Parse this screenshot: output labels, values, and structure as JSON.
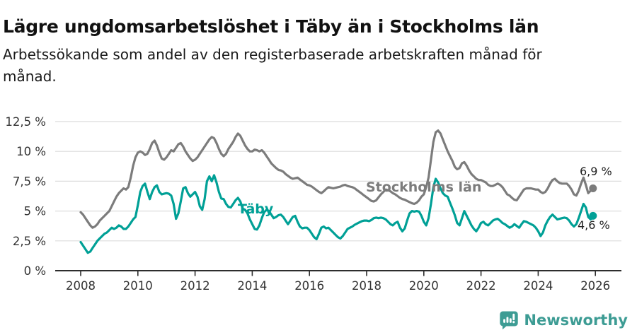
{
  "header": {
    "title": "Lägre ungdomsarbetslöshet i Täby än i Stockholms län",
    "subtitle": "Arbetssökande som andel av den registerbaserade arbetskraften månad för månad.",
    "subtitle_lines": [
      "Arbetssökande som andel av den registerbaserade arbetskraften månad för",
      "månad."
    ]
  },
  "footer": {
    "brand": "Newsworthy",
    "icon": "newsworthy-bar-chart-speech-bubble-icon",
    "brand_color": "#3d9c94"
  },
  "chart_data": {
    "type": "line",
    "title": "Lägre ungdomsarbetslöshet i Täby än i Stockholms län",
    "subtitle": "Arbetssökande som andel av den registerbaserade arbetskraften månad för månad.",
    "unit": "%",
    "x_start": "2008-01",
    "x_end": "2025-12",
    "x_interval": "monthly",
    "xlim": [
      2008,
      2026
    ],
    "ylim": [
      0,
      12.5
    ],
    "grid": "horizontal-only",
    "y_ticks": [
      {
        "value": 0,
        "label": "0 %"
      },
      {
        "value": 2.5,
        "label": "2,5 %"
      },
      {
        "value": 5,
        "label": "5 %"
      },
      {
        "value": 7.5,
        "label": "7,5 %"
      },
      {
        "value": 10,
        "label": "10 %"
      },
      {
        "value": 12.5,
        "label": "12,5 %"
      }
    ],
    "x_ticks": [
      {
        "year": 2008,
        "label": "2008"
      },
      {
        "year": 2010,
        "label": "2010"
      },
      {
        "year": 2012,
        "label": "2012"
      },
      {
        "year": 2014,
        "label": "2014"
      },
      {
        "year": 2016,
        "label": "2016"
      },
      {
        "year": 2018,
        "label": "2018"
      },
      {
        "year": 2020,
        "label": "2020"
      },
      {
        "year": 2022,
        "label": "2022"
      },
      {
        "year": 2024,
        "label": "2024"
      },
      {
        "year": 2026,
        "label": "2026"
      }
    ],
    "legend_position": "inline-labels-on-lines",
    "series": [
      {
        "name": "Stockholms län",
        "color": "#7c7c7c",
        "end_label": "6,9 %",
        "last_value": 6.9,
        "values": [
          4.9,
          4.7,
          4.4,
          4.1,
          3.8,
          3.6,
          3.7,
          3.9,
          4.2,
          4.4,
          4.6,
          4.8,
          5.0,
          5.4,
          5.8,
          6.2,
          6.5,
          6.7,
          6.9,
          6.8,
          7.0,
          7.8,
          8.8,
          9.5,
          9.9,
          10.0,
          9.9,
          9.7,
          9.8,
          10.2,
          10.7,
          10.9,
          10.5,
          9.9,
          9.4,
          9.3,
          9.5,
          9.8,
          10.1,
          10.0,
          10.3,
          10.6,
          10.7,
          10.4,
          10.0,
          9.7,
          9.4,
          9.2,
          9.3,
          9.5,
          9.8,
          10.1,
          10.4,
          10.7,
          11.0,
          11.2,
          11.1,
          10.7,
          10.2,
          9.8,
          9.6,
          9.8,
          10.2,
          10.5,
          10.8,
          11.2,
          11.5,
          11.3,
          10.9,
          10.5,
          10.2,
          10.0,
          10.0,
          10.15,
          10.1,
          10.0,
          10.1,
          9.9,
          9.6,
          9.3,
          9.0,
          8.8,
          8.6,
          8.45,
          8.4,
          8.3,
          8.1,
          7.95,
          7.8,
          7.7,
          7.75,
          7.8,
          7.65,
          7.5,
          7.35,
          7.2,
          7.15,
          7.05,
          6.9,
          6.75,
          6.6,
          6.5,
          6.65,
          6.85,
          7.0,
          6.95,
          6.9,
          6.95,
          7.0,
          7.05,
          7.15,
          7.2,
          7.1,
          7.05,
          7.0,
          6.9,
          6.75,
          6.6,
          6.45,
          6.3,
          6.15,
          6.0,
          5.85,
          5.8,
          5.9,
          6.15,
          6.4,
          6.6,
          6.8,
          6.75,
          6.65,
          6.5,
          6.4,
          6.25,
          6.1,
          6.0,
          5.95,
          5.85,
          5.75,
          5.65,
          5.6,
          5.7,
          5.9,
          6.2,
          6.4,
          7.0,
          7.8,
          9.3,
          10.8,
          11.6,
          11.75,
          11.5,
          11.0,
          10.5,
          10.0,
          9.6,
          9.2,
          8.7,
          8.5,
          8.6,
          9.0,
          9.1,
          8.8,
          8.4,
          8.1,
          7.9,
          7.7,
          7.6,
          7.6,
          7.5,
          7.4,
          7.2,
          7.1,
          7.1,
          7.2,
          7.3,
          7.2,
          7.0,
          6.7,
          6.4,
          6.3,
          6.1,
          5.95,
          5.9,
          6.2,
          6.5,
          6.8,
          6.9,
          6.9,
          6.9,
          6.85,
          6.8,
          6.8,
          6.6,
          6.5,
          6.6,
          6.9,
          7.3,
          7.6,
          7.7,
          7.5,
          7.35,
          7.3,
          7.3,
          7.3,
          7.1,
          6.8,
          6.4,
          6.3,
          6.7,
          7.3,
          7.8,
          7.2,
          6.5,
          6.7,
          6.9
        ]
      },
      {
        "name": "Täby",
        "color": "#00a096",
        "end_label": "4,6 %",
        "last_value": 4.6,
        "values": [
          2.4,
          2.1,
          1.8,
          1.5,
          1.6,
          1.9,
          2.2,
          2.5,
          2.7,
          2.9,
          3.1,
          3.2,
          3.4,
          3.6,
          3.5,
          3.6,
          3.8,
          3.7,
          3.5,
          3.5,
          3.7,
          4.0,
          4.3,
          4.5,
          5.5,
          6.6,
          7.1,
          7.3,
          6.6,
          6.0,
          6.6,
          7.0,
          7.15,
          6.6,
          6.4,
          6.45,
          6.5,
          6.45,
          6.3,
          5.6,
          4.35,
          4.8,
          5.8,
          6.9,
          7.0,
          6.5,
          6.2,
          6.4,
          6.6,
          6.2,
          5.4,
          5.1,
          6.0,
          7.5,
          7.9,
          7.5,
          8.0,
          7.4,
          6.6,
          6.05,
          6.0,
          5.6,
          5.35,
          5.3,
          5.6,
          5.9,
          6.1,
          5.8,
          5.2,
          5.1,
          4.8,
          4.3,
          3.9,
          3.5,
          3.45,
          3.8,
          4.4,
          4.9,
          5.1,
          5.0,
          4.7,
          4.4,
          4.5,
          4.65,
          4.7,
          4.5,
          4.2,
          3.9,
          4.2,
          4.5,
          4.6,
          4.1,
          3.7,
          3.55,
          3.6,
          3.6,
          3.4,
          3.1,
          2.8,
          2.65,
          3.1,
          3.6,
          3.7,
          3.55,
          3.6,
          3.4,
          3.2,
          3.0,
          2.8,
          2.7,
          2.9,
          3.2,
          3.5,
          3.6,
          3.7,
          3.85,
          3.95,
          4.05,
          4.15,
          4.2,
          4.2,
          4.15,
          4.25,
          4.4,
          4.45,
          4.4,
          4.45,
          4.4,
          4.3,
          4.1,
          3.9,
          3.8,
          4.0,
          4.1,
          3.6,
          3.3,
          3.55,
          4.2,
          4.8,
          5.0,
          4.95,
          5.0,
          4.95,
          4.6,
          4.1,
          3.8,
          4.4,
          5.6,
          7.0,
          7.7,
          7.4,
          6.9,
          6.5,
          6.3,
          6.2,
          5.7,
          5.2,
          4.65,
          4.0,
          3.8,
          4.4,
          5.0,
          4.6,
          4.2,
          3.8,
          3.5,
          3.3,
          3.6,
          4.0,
          4.1,
          3.9,
          3.8,
          4.0,
          4.2,
          4.3,
          4.35,
          4.2,
          4.0,
          3.9,
          3.75,
          3.6,
          3.7,
          3.9,
          3.75,
          3.6,
          3.9,
          4.15,
          4.1,
          4.0,
          3.9,
          3.8,
          3.6,
          3.3,
          2.9,
          3.2,
          3.8,
          4.2,
          4.5,
          4.7,
          4.5,
          4.3,
          4.35,
          4.4,
          4.45,
          4.4,
          4.2,
          3.9,
          3.7,
          3.9,
          4.4,
          5.0,
          5.6,
          5.3,
          4.5,
          4.3,
          4.6
        ]
      }
    ],
    "annotations": [
      {
        "text": "Stockholms län",
        "type": "series-label",
        "color": "#7c7c7c"
      },
      {
        "text": "Täby",
        "type": "series-label",
        "color": "#00a096"
      },
      {
        "text": "6,9 %",
        "type": "end-value-label"
      },
      {
        "text": "4,6 %",
        "type": "end-value-label"
      }
    ],
    "colors": {
      "grid": "#dcdcdc",
      "axis": "#2d2d2d",
      "tick_text": "#333333"
    }
  }
}
